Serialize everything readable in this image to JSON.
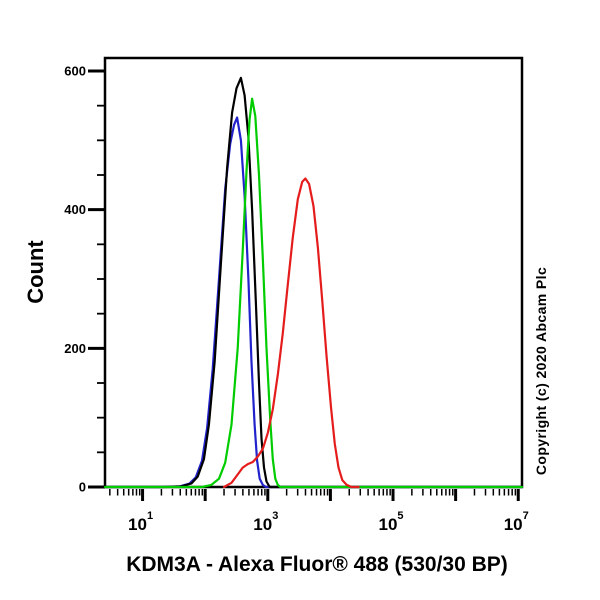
{
  "chart": {
    "y_axis_title": "Count",
    "x_axis_title": "KDM3A - Alexa Fluor® 488 (530/30 BP)",
    "copyright": "Copyright (c) 2020 Abcam Plc"
  },
  "chart_data": {
    "type": "line",
    "subtype": "flow-cytometry-histogram-overlay",
    "title": "",
    "xlabel": "KDM3A - Alexa Fluor® 488 (530/30 BP)",
    "ylabel": "Count",
    "x_scale": "log10",
    "x_range_log10": [
      0.4,
      7.06
    ],
    "ylim": [
      0,
      620
    ],
    "y_major_ticks": [
      0,
      200,
      400,
      600
    ],
    "y_minor_tick_step": 50,
    "x_tick_base": "10",
    "x_major_decades": [
      1,
      2,
      3,
      4,
      5,
      6,
      7
    ],
    "x_labeled_decades": [
      1,
      3,
      5,
      7
    ],
    "grid": false,
    "legend": "none",
    "background": "#ffffff",
    "axis_color": "#000000",
    "points_format": "[log10_fluorescence_intensity, count]",
    "series": [
      {
        "name": "blue",
        "color": "#2222cc",
        "peak_x_log10": 2.51,
        "peak_count": 533,
        "points": [
          [
            0.4,
            0
          ],
          [
            1.3,
            0
          ],
          [
            1.6,
            1
          ],
          [
            1.75,
            5
          ],
          [
            1.85,
            14
          ],
          [
            1.95,
            38
          ],
          [
            2.03,
            85
          ],
          [
            2.12,
            170
          ],
          [
            2.22,
            300
          ],
          [
            2.32,
            430
          ],
          [
            2.4,
            495
          ],
          [
            2.46,
            522
          ],
          [
            2.51,
            533
          ],
          [
            2.57,
            500
          ],
          [
            2.63,
            420
          ],
          [
            2.69,
            300
          ],
          [
            2.74,
            180
          ],
          [
            2.79,
            90
          ],
          [
            2.83,
            38
          ],
          [
            2.87,
            12
          ],
          [
            2.92,
            3
          ],
          [
            2.97,
            0
          ],
          [
            7.06,
            0
          ]
        ]
      },
      {
        "name": "black",
        "color": "#000000",
        "peak_x_log10": 2.57,
        "peak_count": 590,
        "points": [
          [
            0.4,
            0
          ],
          [
            1.35,
            0
          ],
          [
            1.62,
            1
          ],
          [
            1.78,
            5
          ],
          [
            1.88,
            15
          ],
          [
            1.98,
            40
          ],
          [
            2.06,
            90
          ],
          [
            2.15,
            180
          ],
          [
            2.25,
            320
          ],
          [
            2.35,
            460
          ],
          [
            2.43,
            540
          ],
          [
            2.5,
            575
          ],
          [
            2.57,
            590
          ],
          [
            2.63,
            565
          ],
          [
            2.69,
            505
          ],
          [
            2.75,
            400
          ],
          [
            2.81,
            265
          ],
          [
            2.86,
            150
          ],
          [
            2.9,
            70
          ],
          [
            2.94,
            28
          ],
          [
            2.98,
            8
          ],
          [
            3.03,
            0
          ],
          [
            7.06,
            0
          ]
        ]
      },
      {
        "name": "green",
        "color": "#00cc00",
        "peak_x_log10": 2.75,
        "peak_count": 560,
        "points": [
          [
            0.4,
            0
          ],
          [
            1.95,
            0
          ],
          [
            2.1,
            3
          ],
          [
            2.22,
            12
          ],
          [
            2.32,
            35
          ],
          [
            2.42,
            90
          ],
          [
            2.52,
            200
          ],
          [
            2.6,
            340
          ],
          [
            2.66,
            455
          ],
          [
            2.71,
            530
          ],
          [
            2.75,
            560
          ],
          [
            2.8,
            535
          ],
          [
            2.86,
            450
          ],
          [
            2.92,
            330
          ],
          [
            2.98,
            200
          ],
          [
            3.04,
            95
          ],
          [
            3.08,
            40
          ],
          [
            3.12,
            12
          ],
          [
            3.16,
            3
          ],
          [
            3.2,
            0
          ],
          [
            7.06,
            0
          ]
        ]
      },
      {
        "name": "red",
        "color": "#e51c1c",
        "peak_x_log10": 3.6,
        "peak_count": 445,
        "points": [
          [
            2.3,
            0
          ],
          [
            2.42,
            6
          ],
          [
            2.52,
            18
          ],
          [
            2.6,
            28
          ],
          [
            2.68,
            33
          ],
          [
            2.76,
            36
          ],
          [
            2.84,
            44
          ],
          [
            2.92,
            55
          ],
          [
            3.0,
            78
          ],
          [
            3.08,
            112
          ],
          [
            3.16,
            162
          ],
          [
            3.24,
            222
          ],
          [
            3.32,
            292
          ],
          [
            3.4,
            360
          ],
          [
            3.48,
            415
          ],
          [
            3.55,
            440
          ],
          [
            3.6,
            445
          ],
          [
            3.66,
            437
          ],
          [
            3.73,
            405
          ],
          [
            3.8,
            345
          ],
          [
            3.87,
            268
          ],
          [
            3.94,
            188
          ],
          [
            4.01,
            115
          ],
          [
            4.07,
            62
          ],
          [
            4.13,
            28
          ],
          [
            4.19,
            10
          ],
          [
            4.26,
            3
          ],
          [
            4.34,
            0
          ],
          [
            4.45,
            0
          ]
        ]
      }
    ]
  }
}
